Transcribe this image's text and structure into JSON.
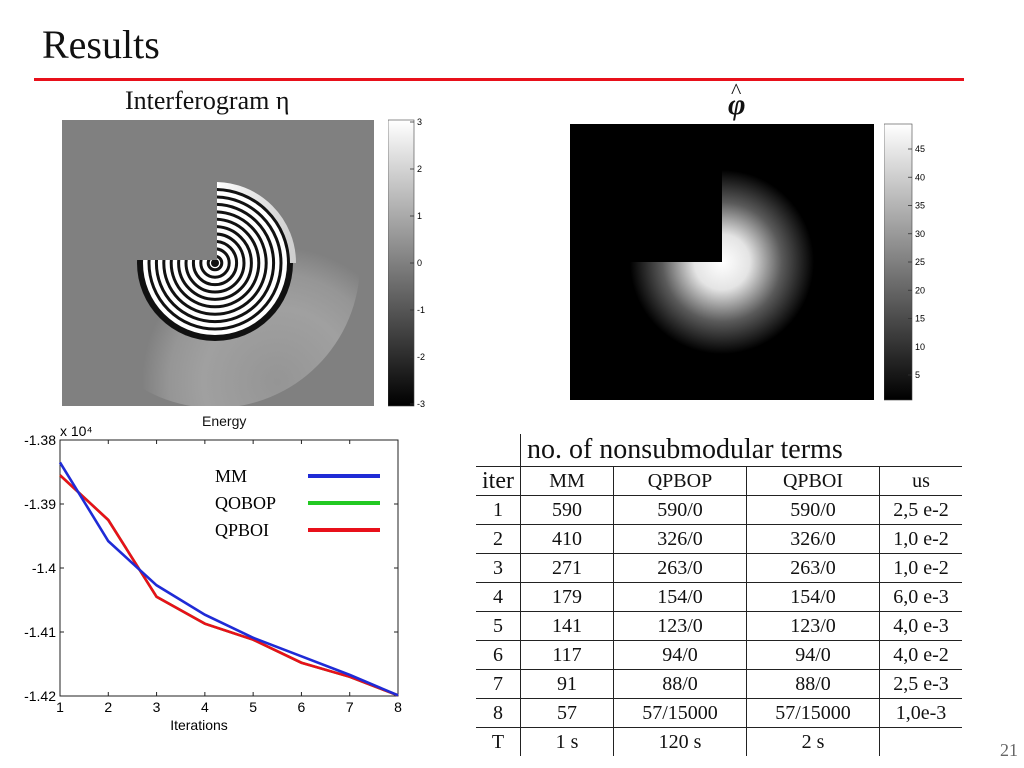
{
  "slide": {
    "title": "Results",
    "page_number": "21",
    "accent_color": "#e8101a"
  },
  "interferogram": {
    "label": "Interferogram η",
    "colorbar_ticks": [
      "3",
      "2",
      "1",
      "0",
      "-1",
      "-2",
      "-3"
    ]
  },
  "phi_panel": {
    "label": "φ",
    "hat": "^",
    "colorbar_ticks": [
      "45",
      "40",
      "35",
      "30",
      "25",
      "20",
      "15",
      "10",
      "5"
    ]
  },
  "chart_data": {
    "type": "line",
    "title": "Energy",
    "xlabel": "Iterations",
    "ylabel": "",
    "y_multiplier": "x 10⁴",
    "xlim": [
      1,
      8
    ],
    "ylim": [
      -1.42,
      -1.38
    ],
    "x_ticks": [
      "1",
      "2",
      "3",
      "4",
      "5",
      "6",
      "7",
      "8"
    ],
    "y_ticks": [
      "-1.38",
      "-1.39",
      "-1.4",
      "-1.41",
      "-1.42"
    ],
    "x": [
      1,
      2,
      3,
      4,
      5,
      6,
      7,
      8
    ],
    "series": [
      {
        "name": "MM",
        "color": "#1f2bd6",
        "values": [
          -1.3835,
          -1.3958,
          -1.4027,
          -1.4073,
          -1.4109,
          -1.4138,
          -1.4167,
          -1.4199
        ]
      },
      {
        "name": "QOBOP",
        "color": "#22c922",
        "values": [
          -1.3855,
          -1.3925,
          -1.4045,
          -1.4087,
          -1.4112,
          -1.4148,
          -1.417,
          -1.4199
        ]
      },
      {
        "name": "QPBOI",
        "color": "#e8101a",
        "values": [
          -1.3855,
          -1.3925,
          -1.4045,
          -1.4087,
          -1.4112,
          -1.4148,
          -1.417,
          -1.4199
        ]
      }
    ],
    "legend_position": "top-right",
    "grid": false
  },
  "table": {
    "header_iter": "iter",
    "header_group": "no. of nonsubmodular terms",
    "columns": [
      "MM",
      "QPBOP",
      "QPBOI",
      "us"
    ],
    "rows": [
      [
        "1",
        "590",
        "590/0",
        "590/0",
        "2,5 e-2"
      ],
      [
        "2",
        "410",
        "326/0",
        "326/0",
        "1,0 e-2"
      ],
      [
        "3",
        "271",
        "263/0",
        "263/0",
        "1,0 e-2"
      ],
      [
        "4",
        "179",
        "154/0",
        "154/0",
        "6,0 e-3"
      ],
      [
        "5",
        "141",
        "123/0",
        "123/0",
        "4,0 e-3"
      ],
      [
        "6",
        "117",
        "94/0",
        "94/0",
        "4,0 e-2"
      ],
      [
        "7",
        "91",
        "88/0",
        "88/0",
        "2,5 e-3"
      ],
      [
        "8",
        "57",
        "57/15000",
        "57/15000",
        "1,0e-3"
      ],
      [
        "T",
        "1 s",
        "120 s",
        "2 s",
        ""
      ]
    ]
  }
}
